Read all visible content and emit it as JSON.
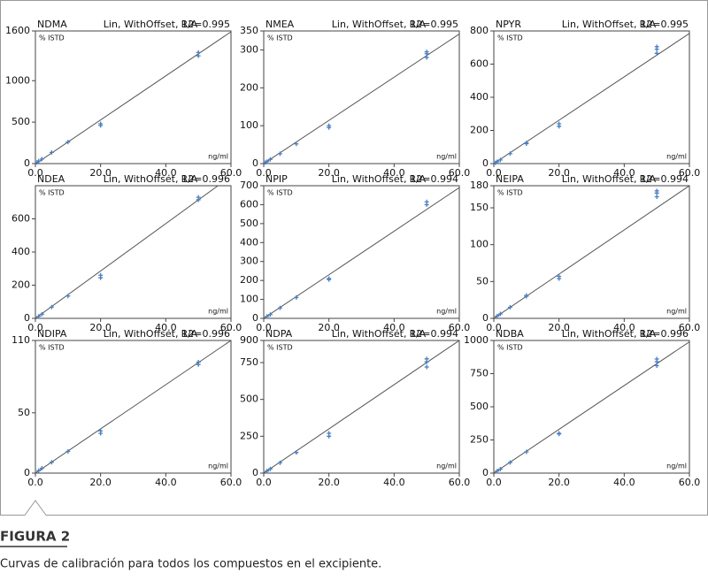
{
  "chart_data": [
    {
      "type": "scatter",
      "title": "NDMA",
      "subtitle": "Lin, WithOffset, 1/A",
      "annotation": "R2=0.995",
      "ylabel": "% ISTD",
      "xlabel": "ng/ml",
      "xlim": [
        0,
        60
      ],
      "xticks": [
        {
          "value": 0,
          "label": "0.0"
        },
        {
          "value": 20,
          "label": "20.0"
        },
        {
          "value": 40,
          "label": "40.0"
        },
        {
          "value": 60,
          "label": "60.0"
        }
      ],
      "ylim": [
        0,
        1600
      ],
      "yticks": [
        0,
        500,
        1000,
        1600
      ],
      "color": "#4a7fc1",
      "x": [
        0.5,
        1,
        2,
        5,
        10,
        20,
        20,
        50,
        50
      ],
      "values": [
        15,
        30,
        55,
        135,
        260,
        460,
        480,
        1300,
        1340
      ],
      "fit": {
        "color": "#555555",
        "x": [
          0,
          60
        ],
        "values": [
          -5,
          1590
        ]
      }
    },
    {
      "type": "scatter",
      "title": "NMEA",
      "subtitle": "Lin, WithOffset, 1/A",
      "annotation": "R2=0.995",
      "ylabel": "% ISTD",
      "xlabel": "ng/ml",
      "xlim": [
        0,
        60
      ],
      "xticks": [
        {
          "value": 0,
          "label": "0.0"
        },
        {
          "value": 20,
          "label": "20.0"
        },
        {
          "value": 40,
          "label": "40.0"
        },
        {
          "value": 60,
          "label": "60.0"
        }
      ],
      "ylim": [
        0,
        350
      ],
      "yticks": [
        0,
        100,
        200,
        300,
        350
      ],
      "color": "#4a7fc1",
      "x": [
        0.5,
        1,
        2,
        5,
        10,
        20,
        20,
        50,
        50,
        50
      ],
      "values": [
        3,
        5,
        11,
        26,
        52,
        95,
        100,
        280,
        290,
        295
      ],
      "fit": {
        "color": "#555555",
        "x": [
          0,
          60
        ],
        "values": [
          0,
          342
        ]
      }
    },
    {
      "type": "scatter",
      "title": "NPYR",
      "subtitle": "Lin, WithOffset, 1/A",
      "annotation": "R2=0.995",
      "ylabel": "% ISTD",
      "xlabel": "ng/ml",
      "xlim": [
        0,
        60
      ],
      "xticks": [
        {
          "value": 0,
          "label": "0.0"
        },
        {
          "value": 20,
          "label": "20.0"
        },
        {
          "value": 40,
          "label": "40.0"
        },
        {
          "value": 60,
          "label": "60.0"
        }
      ],
      "ylim": [
        0,
        800
      ],
      "yticks": [
        0,
        200,
        400,
        600,
        800
      ],
      "color": "#4a7fc1",
      "x": [
        0.5,
        1,
        2,
        5,
        10,
        10,
        20,
        20,
        50,
        50,
        50
      ],
      "values": [
        5,
        11,
        22,
        60,
        120,
        125,
        225,
        240,
        665,
        690,
        705
      ],
      "fit": {
        "color": "#555555",
        "x": [
          0,
          60
        ],
        "values": [
          0,
          785
        ]
      }
    },
    {
      "type": "scatter",
      "title": "NDEA",
      "subtitle": "Lin, WithOffset, 1/A",
      "annotation": "R2=0.996",
      "ylabel": "% ISTD",
      "xlabel": "ng/ml",
      "xlim": [
        0,
        60
      ],
      "xticks": [
        {
          "value": 0,
          "label": "0.0"
        },
        {
          "value": 20,
          "label": "20.0"
        },
        {
          "value": 40,
          "label": "40.0"
        },
        {
          "value": 60,
          "label": "60.0"
        }
      ],
      "ylim": [
        0,
        800
      ],
      "yticks": [
        0,
        200,
        400,
        600
      ],
      "color": "#4a7fc1",
      "x": [
        1,
        2,
        5,
        10,
        20,
        20,
        50,
        50
      ],
      "values": [
        12,
        25,
        68,
        135,
        245,
        260,
        715,
        730
      ],
      "fit": {
        "color": "#555555",
        "x": [
          0,
          56
        ],
        "values": [
          0,
          800
        ]
      }
    },
    {
      "type": "scatter",
      "title": "NPIP",
      "subtitle": "Lin, WithOffset, 1/A",
      "annotation": "R2=0.994",
      "ylabel": "% ISTD",
      "xlabel": "ng/ml",
      "xlim": [
        0,
        60
      ],
      "xticks": [
        {
          "value": 0,
          "label": "0.0"
        },
        {
          "value": 20,
          "label": "20.0"
        },
        {
          "value": 40,
          "label": "40.0"
        },
        {
          "value": 60,
          "label": "60.0"
        }
      ],
      "ylim": [
        0,
        700
      ],
      "yticks": [
        0,
        100,
        200,
        300,
        400,
        500,
        600,
        700
      ],
      "color": "#4a7fc1",
      "x": [
        1,
        2,
        5,
        10,
        20,
        20,
        50,
        50
      ],
      "values": [
        10,
        20,
        55,
        110,
        205,
        210,
        600,
        615
      ],
      "fit": {
        "color": "#555555",
        "x": [
          0,
          60
        ],
        "values": [
          0,
          690
        ]
      }
    },
    {
      "type": "scatter",
      "title": "NEIPA",
      "subtitle": "Lin, WithOffset, 1/A",
      "annotation": "R2=0.994",
      "ylabel": "% ISTD",
      "xlabel": "ng/ml",
      "xlim": [
        0,
        60
      ],
      "xticks": [
        {
          "value": 0,
          "label": "0.0"
        },
        {
          "value": 20,
          "label": "20.0"
        },
        {
          "value": 40,
          "label": "40.0"
        },
        {
          "value": 60,
          "label": "60.0"
        }
      ],
      "ylim": [
        0,
        180
      ],
      "yticks": [
        0,
        50,
        100,
        150,
        180
      ],
      "color": "#4a7fc1",
      "x": [
        1,
        2,
        5,
        10,
        10,
        20,
        20,
        50,
        50,
        50
      ],
      "values": [
        3,
        6,
        15,
        30,
        31,
        54,
        57,
        165,
        170,
        173
      ],
      "fit": {
        "color": "#555555",
        "x": [
          0,
          60
        ],
        "values": [
          0,
          180
        ]
      }
    },
    {
      "type": "scatter",
      "title": "NDIPA",
      "subtitle": "Lin, WithOffset, 1/A",
      "annotation": "R2=0.996",
      "ylabel": "% ISTD",
      "xlabel": "ng/ml",
      "xlim": [
        0,
        60
      ],
      "xticks": [
        {
          "value": 0,
          "label": "0.0"
        },
        {
          "value": 20,
          "label": "20.0"
        },
        {
          "value": 40,
          "label": "40.0"
        },
        {
          "value": 60,
          "label": "60.0"
        }
      ],
      "ylim": [
        0,
        110
      ],
      "yticks": [
        0,
        50,
        110
      ],
      "color": "#4a7fc1",
      "x": [
        1,
        2,
        5,
        10,
        20,
        20,
        50,
        50
      ],
      "values": [
        2,
        4,
        9,
        18,
        33,
        35,
        90,
        92
      ],
      "fit": {
        "color": "#555555",
        "x": [
          0,
          60
        ],
        "values": [
          0,
          110
        ]
      }
    },
    {
      "type": "scatter",
      "title": "NDPA",
      "subtitle": "Lin, WithOffset, 1/A",
      "annotation": "R2=0.994",
      "ylabel": "% ISTD",
      "xlabel": "ng/ml",
      "xlim": [
        0,
        60
      ],
      "xticks": [
        {
          "value": 0,
          "label": "0.0"
        },
        {
          "value": 20,
          "label": "20.0"
        },
        {
          "value": 40,
          "label": "40.0"
        },
        {
          "value": 60,
          "label": "60.0"
        }
      ],
      "ylim": [
        0,
        900
      ],
      "yticks": [
        0,
        250,
        500,
        750,
        900
      ],
      "color": "#4a7fc1",
      "x": [
        1,
        2,
        5,
        10,
        20,
        20,
        50,
        50,
        50
      ],
      "values": [
        14,
        28,
        70,
        140,
        250,
        270,
        720,
        755,
        775
      ],
      "fit": {
        "color": "#555555",
        "x": [
          0,
          60
        ],
        "values": [
          0,
          900
        ]
      }
    },
    {
      "type": "scatter",
      "title": "NDBA",
      "subtitle": "Lin, WithOffset, 1/A",
      "annotation": "R2=0.996",
      "ylabel": "% ISTD",
      "xlabel": "ng/ml",
      "xlim": [
        0,
        60
      ],
      "xticks": [
        {
          "value": 0,
          "label": "0.0"
        },
        {
          "value": 20,
          "label": "20.0"
        },
        {
          "value": 40,
          "label": "40.0"
        },
        {
          "value": 60,
          "label": "60.0"
        }
      ],
      "ylim": [
        0,
        1000
      ],
      "yticks": [
        0,
        250,
        500,
        750,
        1000
      ],
      "color": "#4a7fc1",
      "x": [
        1,
        2,
        5,
        10,
        20,
        20,
        50,
        50,
        50
      ],
      "values": [
        15,
        30,
        80,
        160,
        295,
        300,
        810,
        840,
        860
      ],
      "fit": {
        "color": "#555555",
        "x": [
          0,
          60
        ],
        "values": [
          0,
          990
        ]
      }
    }
  ],
  "figure": {
    "label": "FIGURA 2",
    "caption": "Curvas de calibración para todos los compuestos en el excipiente."
  }
}
